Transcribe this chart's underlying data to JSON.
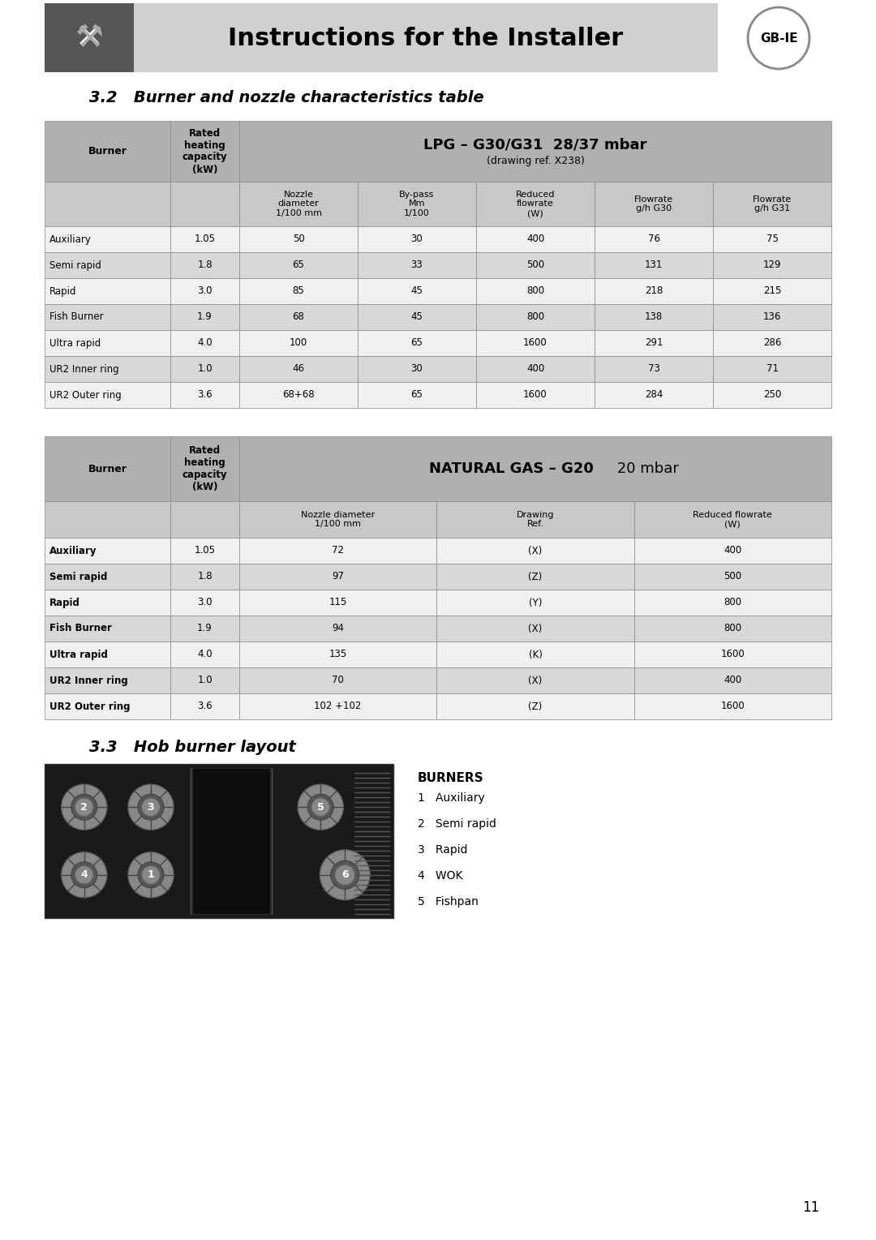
{
  "page_bg": "#ffffff",
  "header_bg": "#d0d0d0",
  "header_icon_bg": "#555555",
  "title_text": "Instructions for the Installer",
  "gbie_text": "GB-IE",
  "section_title": "3.2   Burner and nozzle characteristics table",
  "section_title2": "3.3   Hob burner layout",
  "lpg_header": "LPG – G30/G31  28/37 mbar",
  "lpg_subheader": "(drawing ref. X238)",
  "ng_header": "NATURAL GAS – G20  20 mbar",
  "lpg_col_headers": [
    "Nozzle\ndiameter\n1/100 mm",
    "By-pass\nMm\n1/100",
    "Reduced\nflowrate\n(W)",
    "Flowrate\ng/h G30",
    "Flowrate\ng/h G31"
  ],
  "ng_col_headers": [
    "Nozzle diameter\n1/100 mm",
    "Drawing\nRef.",
    "Reduced flowrate\n(W)"
  ],
  "burner_col": "Burner",
  "rated_col": "Rated\nheating\ncapacity\n(kW)",
  "lpg_rows": [
    [
      "Auxiliary",
      "1.05",
      "50",
      "30",
      "400",
      "76",
      "75"
    ],
    [
      "Semi rapid",
      "1.8",
      "65",
      "33",
      "500",
      "131",
      "129"
    ],
    [
      "Rapid",
      "3.0",
      "85",
      "45",
      "800",
      "218",
      "215"
    ],
    [
      "Fish Burner",
      "1.9",
      "68",
      "45",
      "800",
      "138",
      "136"
    ],
    [
      "Ultra rapid",
      "4.0",
      "100",
      "65",
      "1600",
      "291",
      "286"
    ],
    [
      "UR2 Inner ring",
      "1.0",
      "46",
      "30",
      "400",
      "73",
      "71"
    ],
    [
      "UR2 Outer ring",
      "3.6",
      "68+68",
      "65",
      "1600",
      "284",
      "250"
    ]
  ],
  "ng_rows": [
    [
      "Auxiliary",
      "1.05",
      "72",
      "(X)",
      "400"
    ],
    [
      "Semi rapid",
      "1.8",
      "97",
      "(Z)",
      "500"
    ],
    [
      "Rapid",
      "3.0",
      "115",
      "(Y)",
      "800"
    ],
    [
      "Fish Burner",
      "1.9",
      "94",
      "(X)",
      "800"
    ],
    [
      "Ultra rapid",
      "4.0",
      "135",
      "(K)",
      "1600"
    ],
    [
      "UR2 Inner ring",
      "1.0",
      "70",
      "(X)",
      "400"
    ],
    [
      "UR2 Outer ring",
      "3.6",
      "102 +102",
      "(Z)",
      "1600"
    ]
  ],
  "burners_title": "BURNERS",
  "burners_list": [
    "1   Auxiliary",
    "2   Semi rapid",
    "3   Rapid",
    "4   WOK",
    "5   Fishpan"
  ],
  "table_header_bg": "#b0b0b0",
  "table_subheader_bg": "#c8c8c8",
  "table_row_odd": "#f0f0f0",
  "table_row_even": "#d8d8d8",
  "table_border": "#888888"
}
